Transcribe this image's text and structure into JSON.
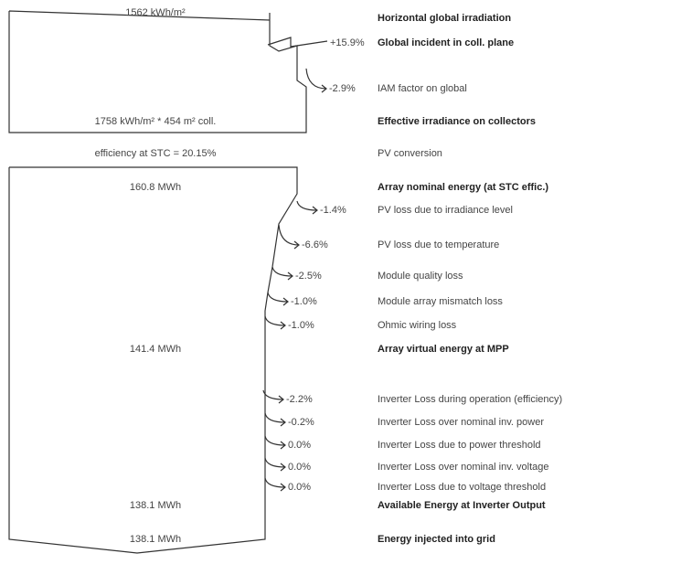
{
  "rows": [
    {
      "label": "Horizontal global irradiation",
      "bold": true,
      "box": "1562 kWh/m²"
    },
    {
      "label": "Global incident in coll. plane",
      "bold": true,
      "loss": "+15.9%"
    },
    {
      "label": "IAM factor on global",
      "bold": false,
      "loss": "-2.9%"
    },
    {
      "label": "Effective irradiance on collectors",
      "bold": true,
      "box": "1758 kWh/m² * 454 m² coll."
    },
    {
      "label": "PV conversion",
      "bold": false,
      "box": "efficiency at STC = 20.15%"
    },
    {
      "label": "Array nominal energy (at STC effic.)",
      "bold": true,
      "box": "160.8 MWh"
    },
    {
      "label": "PV loss due to irradiance level",
      "bold": false,
      "loss": "-1.4%"
    },
    {
      "label": "PV loss due to temperature",
      "bold": false,
      "loss": "-6.6%"
    },
    {
      "label": "Module quality loss",
      "bold": false,
      "loss": "-2.5%"
    },
    {
      "label": "Module array mismatch loss",
      "bold": false,
      "loss": "-1.0%"
    },
    {
      "label": "Ohmic wiring loss",
      "bold": false,
      "loss": "-1.0%"
    },
    {
      "label": "Array virtual energy at MPP",
      "bold": true,
      "box": "141.4 MWh"
    },
    {
      "label": "Inverter Loss during operation (efficiency)",
      "bold": false,
      "loss": "-2.2%"
    },
    {
      "label": "Inverter Loss over nominal inv. power",
      "bold": false,
      "loss": "-0.2%"
    },
    {
      "label": "Inverter Loss due to power threshold",
      "bold": false,
      "loss": "0.0%"
    },
    {
      "label": "Inverter Loss over nominal inv. voltage",
      "bold": false,
      "loss": "0.0%"
    },
    {
      "label": "Inverter Loss due to voltage threshold",
      "bold": false,
      "loss": "0.0%"
    },
    {
      "label": "Available Energy at Inverter Output",
      "bold": true,
      "box": "138.1 MWh"
    },
    {
      "label": "Energy injected into grid",
      "bold": true,
      "box": "138.1 MWh"
    }
  ]
}
